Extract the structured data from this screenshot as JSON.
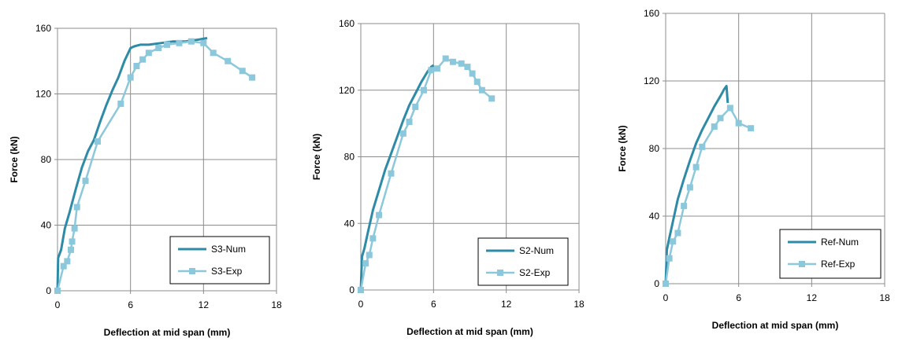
{
  "chart_data": [
    {
      "type": "line",
      "xlabel": "Deflection at mid span (mm)",
      "ylabel": "Force (kN)",
      "xlim": [
        0,
        18
      ],
      "ylim": [
        0,
        160
      ],
      "xticks": [
        0,
        6,
        12,
        18
      ],
      "yticks": [
        0,
        40,
        80,
        120,
        160
      ],
      "grid": "vertical and horizontal major gridlines",
      "legend_position": "bottom-right",
      "series": [
        {
          "name": "S3-Num",
          "color": "#2e8ba8",
          "marker": "none",
          "x": [
            0,
            0.05,
            0.3,
            0.6,
            1.0,
            1.5,
            2.0,
            2.5,
            3.0,
            3.5,
            4.0,
            4.5,
            5.0,
            5.5,
            6.0,
            6.3,
            6.8,
            7.5,
            8.5,
            9.5,
            10.5,
            11.5,
            12.3
          ],
          "y": [
            0,
            20,
            25,
            38,
            48,
            62,
            75,
            85,
            92,
            103,
            113,
            122,
            130,
            140,
            148,
            149,
            150,
            150,
            151,
            152,
            152,
            153,
            154
          ]
        },
        {
          "name": "S3-Exp",
          "color": "#8cc8dc",
          "marker": "square",
          "x": [
            0,
            0.5,
            0.8,
            1.1,
            1.2,
            1.4,
            1.6,
            2.3,
            3.3,
            5.2,
            6.0,
            6.5,
            7.0,
            7.5,
            8.3,
            9.0,
            10.0,
            11.0,
            12.0,
            12.8,
            14.0,
            15.2,
            16.0
          ],
          "y": [
            0,
            15,
            18,
            25,
            30,
            38,
            51,
            67,
            91,
            114,
            130,
            137,
            141,
            145,
            148,
            150,
            151,
            152,
            151,
            145,
            140,
            134,
            130
          ]
        }
      ]
    },
    {
      "type": "line",
      "xlabel": "Deflection at mid span (mm)",
      "ylabel": "Force (kN)",
      "xlim": [
        0,
        18
      ],
      "ylim": [
        0,
        160
      ],
      "xticks": [
        0,
        6,
        12,
        18
      ],
      "yticks": [
        0,
        40,
        80,
        120,
        160
      ],
      "grid": "vertical and horizontal major gridlines",
      "legend_position": "bottom-right",
      "series": [
        {
          "name": "S2-Num",
          "color": "#2e8ba8",
          "marker": "none",
          "x": [
            0,
            0.1,
            0.3,
            0.6,
            1.0,
            1.5,
            2.0,
            2.5,
            3.0,
            3.5,
            4.0,
            4.5,
            5.0,
            5.5,
            5.8,
            6.0
          ],
          "y": [
            0,
            20,
            25,
            35,
            48,
            60,
            72,
            82,
            92,
            102,
            111,
            118,
            125,
            131,
            134,
            135
          ]
        },
        {
          "name": "S2-Exp",
          "color": "#8cc8dc",
          "marker": "square",
          "x": [
            0,
            0.4,
            0.7,
            1.0,
            1.5,
            2.5,
            3.5,
            4.0,
            4.5,
            5.2,
            5.8,
            6.3,
            7.0,
            7.6,
            8.3,
            8.8,
            9.2,
            9.6,
            10.0,
            10.8
          ],
          "y": [
            0,
            16,
            21,
            31,
            45,
            70,
            94,
            101,
            110,
            120,
            132,
            133,
            139,
            137,
            136,
            134,
            130,
            125,
            120,
            115
          ]
        }
      ]
    },
    {
      "type": "line",
      "xlabel": "Deflection at mid span (mm)",
      "ylabel": "Force (kN)",
      "xlim": [
        0,
        18
      ],
      "ylim": [
        0,
        160
      ],
      "xticks": [
        0,
        6,
        12,
        18
      ],
      "yticks": [
        0,
        40,
        80,
        120,
        160
      ],
      "grid": "vertical and horizontal major gridlines",
      "legend_position": "bottom-right",
      "series": [
        {
          "name": "Ref-Num",
          "color": "#2e8ba8",
          "marker": "none",
          "x": [
            0,
            0.1,
            0.3,
            0.6,
            1.0,
            1.5,
            2.0,
            2.5,
            3.0,
            3.5,
            4.0,
            4.5,
            4.8,
            5.0,
            5.1
          ],
          "y": [
            0,
            20,
            27,
            37,
            50,
            62,
            73,
            83,
            91,
            98,
            105,
            111,
            115,
            117,
            107
          ]
        },
        {
          "name": "Ref-Exp",
          "color": "#8cc8dc",
          "marker": "square",
          "x": [
            0,
            0.3,
            0.6,
            1.0,
            1.5,
            2.0,
            2.5,
            3.0,
            4.0,
            4.5,
            5.3,
            6.0,
            7.0
          ],
          "y": [
            0,
            15,
            25,
            30,
            46,
            57,
            69,
            81,
            93,
            98,
            104,
            95,
            92
          ]
        }
      ]
    }
  ]
}
